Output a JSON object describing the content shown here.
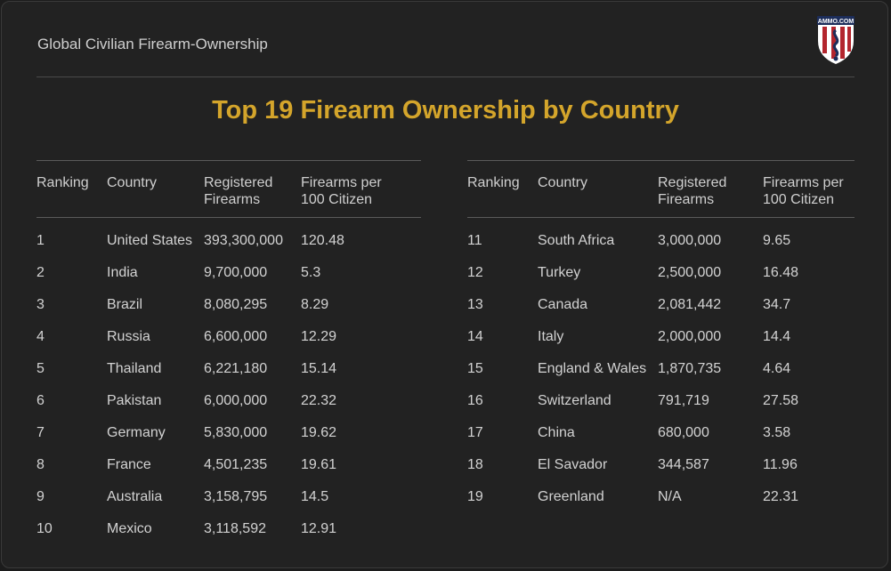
{
  "header": {
    "title": "Global Civilian Firearm-Ownership",
    "logo_text": "AMMO.COM"
  },
  "main": {
    "title": "Top 19 Firearm Ownership by Country"
  },
  "colors": {
    "accent": "#d4a52b",
    "background": "#222222"
  },
  "table": {
    "columns": [
      "Ranking",
      "Country",
      "Registered\nFirearms",
      "Firearms per\n100 Citizen"
    ],
    "left_rows": [
      [
        "1",
        "United States",
        "393,300,000",
        "120.48"
      ],
      [
        "2",
        "India",
        "9,700,000",
        "5.3"
      ],
      [
        "3",
        "Brazil",
        "8,080,295",
        "8.29"
      ],
      [
        "4",
        "Russia",
        "6,600,000",
        "12.29"
      ],
      [
        "5",
        "Thailand",
        "6,221,180",
        "15.14"
      ],
      [
        "6",
        "Pakistan",
        "6,000,000",
        "22.32"
      ],
      [
        "7",
        "Germany",
        "5,830,000",
        "19.62"
      ],
      [
        "8",
        "France",
        "4,501,235",
        "19.61"
      ],
      [
        "9",
        "Australia",
        "3,158,795",
        "14.5"
      ],
      [
        "10",
        "Mexico",
        "3,118,592",
        "12.91"
      ]
    ],
    "right_rows": [
      [
        "11",
        "South Africa",
        "3,000,000",
        "9.65"
      ],
      [
        "12",
        "Turkey",
        "2,500,000",
        "16.48"
      ],
      [
        "13",
        "Canada",
        "2,081,442",
        "34.7"
      ],
      [
        "14",
        "Italy",
        "2,000,000",
        "14.4"
      ],
      [
        "15",
        "England & Wales",
        "1,870,735",
        "4.64"
      ],
      [
        "16",
        "Switzerland",
        "791,719",
        "27.58"
      ],
      [
        "17",
        "China",
        "680,000",
        "3.58"
      ],
      [
        "18",
        "El Savador",
        "344,587",
        "11.96"
      ],
      [
        "19",
        "Greenland",
        "N/A",
        "22.31"
      ]
    ]
  }
}
